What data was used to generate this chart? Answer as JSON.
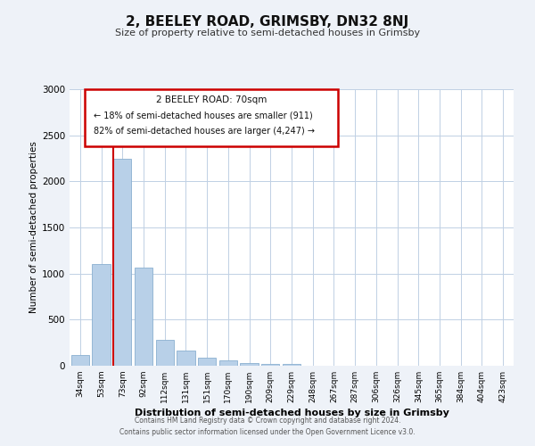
{
  "title": "2, BEELEY ROAD, GRIMSBY, DN32 8NJ",
  "subtitle": "Size of property relative to semi-detached houses in Grimsby",
  "xlabel": "Distribution of semi-detached houses by size in Grimsby",
  "ylabel": "Number of semi-detached properties",
  "bar_labels": [
    "34sqm",
    "53sqm",
    "73sqm",
    "92sqm",
    "112sqm",
    "131sqm",
    "151sqm",
    "170sqm",
    "190sqm",
    "209sqm",
    "229sqm",
    "248sqm",
    "267sqm",
    "287sqm",
    "306sqm",
    "326sqm",
    "345sqm",
    "365sqm",
    "384sqm",
    "404sqm",
    "423sqm"
  ],
  "bar_values": [
    120,
    1100,
    2250,
    1060,
    280,
    160,
    90,
    55,
    30,
    20,
    15,
    0,
    0,
    0,
    0,
    0,
    0,
    0,
    0,
    0,
    0
  ],
  "bar_color": "#b8d0e8",
  "bar_edge_color": "#8ab0d0",
  "property_label": "2 BEELEY ROAD: 70sqm",
  "pct_smaller": 18,
  "pct_larger": 82,
  "n_smaller": 911,
  "n_larger": 4247,
  "vline_color": "#cc0000",
  "vline_x_index": 1.57,
  "ylim": [
    0,
    3000
  ],
  "yticks": [
    0,
    500,
    1000,
    1500,
    2000,
    2500,
    3000
  ],
  "annotation_box_color": "#cc0000",
  "footer_line1": "Contains HM Land Registry data © Crown copyright and database right 2024.",
  "footer_line2": "Contains public sector information licensed under the Open Government Licence v3.0.",
  "bg_color": "#eef2f8",
  "plot_bg_color": "#ffffff",
  "grid_color": "#c0d0e4"
}
